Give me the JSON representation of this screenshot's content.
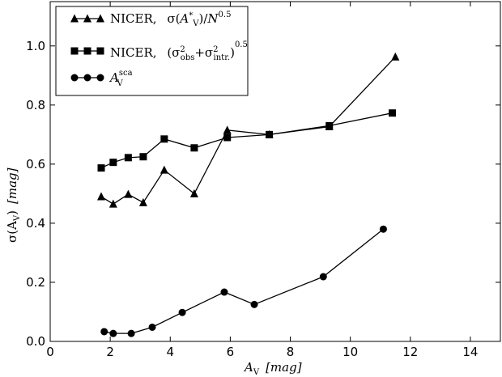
{
  "chart_data": {
    "type": "line",
    "title": "",
    "xlabel": {
      "main": "A",
      "sub": "V",
      "unit": "[mag]"
    },
    "ylabel": {
      "main": "σ(A",
      "sub": "V",
      "close": ")",
      "unit": "[mag]"
    },
    "xlim": [
      0,
      15
    ],
    "ylim": [
      0.0,
      1.15
    ],
    "xticks": [
      0,
      2,
      4,
      6,
      8,
      10,
      12,
      14
    ],
    "xtick_labels": [
      "0",
      "2",
      "4",
      "6",
      "8",
      "10",
      "12",
      "14"
    ],
    "yticks": [
      0.0,
      0.2,
      0.4,
      0.6,
      0.8,
      1.0
    ],
    "ytick_labels": [
      "0.0",
      "0.2",
      "0.4",
      "0.6",
      "0.8",
      "1.0"
    ],
    "grid": false,
    "legend_position": "top-left",
    "series": [
      {
        "marker": "triangle",
        "legend": {
          "prefix": "NICER,",
          "text": "σ(A*V)/N^0.5"
        },
        "x": [
          1.7,
          2.1,
          2.6,
          3.1,
          3.8,
          4.8,
          5.9,
          7.3,
          9.3,
          11.5
        ],
        "y": [
          0.49,
          0.465,
          0.498,
          0.47,
          0.58,
          0.5,
          0.715,
          0.7,
          0.727,
          0.963
        ]
      },
      {
        "marker": "square",
        "legend": {
          "prefix": "NICER,",
          "text": "(σ²obs+σ²intr.)^0.5"
        },
        "x": [
          1.7,
          2.1,
          2.6,
          3.1,
          3.8,
          4.8,
          5.9,
          7.3,
          9.3,
          11.4
        ],
        "y": [
          0.587,
          0.606,
          0.622,
          0.625,
          0.685,
          0.655,
          0.69,
          0.7,
          0.73,
          0.773
        ]
      },
      {
        "marker": "circle",
        "legend": {
          "prefix": "",
          "text": "A^sca V"
        },
        "x": [
          1.8,
          2.1,
          2.7,
          3.4,
          4.4,
          5.8,
          6.8,
          9.1,
          11.1
        ],
        "y": [
          0.033,
          0.027,
          0.027,
          0.048,
          0.098,
          0.167,
          0.125,
          0.219,
          0.38
        ]
      }
    ]
  }
}
